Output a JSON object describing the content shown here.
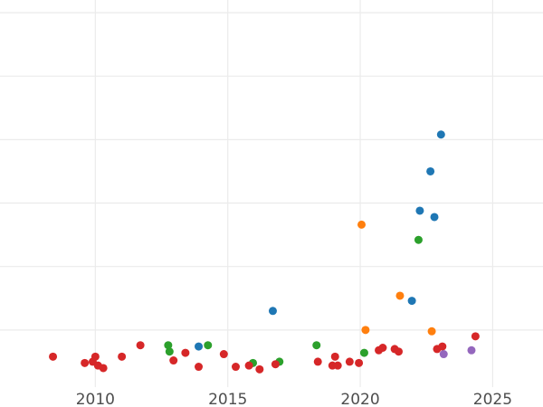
{
  "chart_data": {
    "type": "scatter",
    "title": "",
    "xlabel": "",
    "ylabel": "",
    "x_ticks": [
      2010,
      2015,
      2020,
      2025
    ],
    "xlim": [
      2006.4,
      2026.9
    ],
    "y_grid": [
      0,
      0.5,
      1.0,
      1.5,
      2.0,
      2.5
    ],
    "ylim": [
      -0.45,
      2.6
    ],
    "grid": true,
    "legend": "none",
    "colors": {
      "blue": "#1f77b4",
      "orange": "#ff7f0e",
      "green": "#2ca02c",
      "red": "#d62728",
      "purple": "#9467bd"
    },
    "series": [
      {
        "color": "blue",
        "points": [
          {
            "x": 2013.9,
            "y": -0.13
          },
          {
            "x": 2016.7,
            "y": 0.15
          },
          {
            "x": 2021.95,
            "y": 0.23
          },
          {
            "x": 2022.25,
            "y": 0.94
          },
          {
            "x": 2022.65,
            "y": 1.25
          },
          {
            "x": 2022.8,
            "y": 0.89
          },
          {
            "x": 2023.05,
            "y": 1.54
          }
        ]
      },
      {
        "color": "orange",
        "points": [
          {
            "x": 2020.05,
            "y": 0.83
          },
          {
            "x": 2020.2,
            "y": 0.0
          },
          {
            "x": 2021.5,
            "y": 0.27
          },
          {
            "x": 2022.7,
            "y": -0.01
          }
        ]
      },
      {
        "color": "green",
        "points": [
          {
            "x": 2012.75,
            "y": -0.12
          },
          {
            "x": 2012.8,
            "y": -0.17
          },
          {
            "x": 2014.25,
            "y": -0.12
          },
          {
            "x": 2015.95,
            "y": -0.26
          },
          {
            "x": 2016.95,
            "y": -0.25
          },
          {
            "x": 2018.35,
            "y": -0.12
          },
          {
            "x": 2020.15,
            "y": -0.18
          },
          {
            "x": 2022.2,
            "y": 0.71
          }
        ]
      },
      {
        "color": "red",
        "points": [
          {
            "x": 2008.4,
            "y": -0.21
          },
          {
            "x": 2009.6,
            "y": -0.26
          },
          {
            "x": 2009.9,
            "y": -0.25
          },
          {
            "x": 2010.0,
            "y": -0.21
          },
          {
            "x": 2010.1,
            "y": -0.28
          },
          {
            "x": 2010.3,
            "y": -0.3
          },
          {
            "x": 2011.0,
            "y": -0.21
          },
          {
            "x": 2011.7,
            "y": -0.12
          },
          {
            "x": 2012.95,
            "y": -0.24
          },
          {
            "x": 2013.4,
            "y": -0.18
          },
          {
            "x": 2013.9,
            "y": -0.29
          },
          {
            "x": 2014.85,
            "y": -0.19
          },
          {
            "x": 2015.3,
            "y": -0.29
          },
          {
            "x": 2015.8,
            "y": -0.28
          },
          {
            "x": 2016.2,
            "y": -0.31
          },
          {
            "x": 2016.8,
            "y": -0.27
          },
          {
            "x": 2018.4,
            "y": -0.25
          },
          {
            "x": 2018.95,
            "y": -0.28
          },
          {
            "x": 2019.05,
            "y": -0.21
          },
          {
            "x": 2019.15,
            "y": -0.28
          },
          {
            "x": 2019.6,
            "y": -0.25
          },
          {
            "x": 2019.95,
            "y": -0.26
          },
          {
            "x": 2020.7,
            "y": -0.16
          },
          {
            "x": 2020.85,
            "y": -0.14
          },
          {
            "x": 2021.3,
            "y": -0.15
          },
          {
            "x": 2021.45,
            "y": -0.17
          },
          {
            "x": 2022.9,
            "y": -0.15
          },
          {
            "x": 2023.1,
            "y": -0.13
          },
          {
            "x": 2024.35,
            "y": -0.05
          }
        ]
      },
      {
        "color": "purple",
        "points": [
          {
            "x": 2023.15,
            "y": -0.19
          },
          {
            "x": 2024.2,
            "y": -0.16
          }
        ]
      }
    ]
  }
}
